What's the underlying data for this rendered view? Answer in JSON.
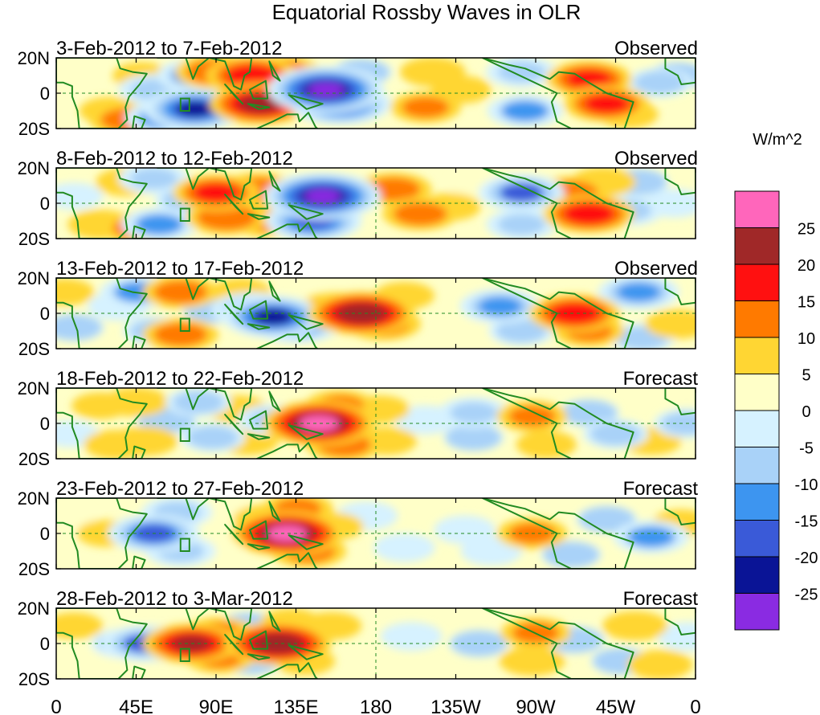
{
  "chart_data": {
    "type": "heatmap",
    "title": "Equatorial Rossby Waves in OLR",
    "units_label": "W/m^2",
    "x_ticks": [
      "0",
      "45E",
      "90E",
      "135E",
      "180",
      "135W",
      "90W",
      "45W",
      "0"
    ],
    "x_tick_lons": [
      0,
      45,
      90,
      135,
      180,
      225,
      270,
      315,
      360
    ],
    "y_ticks": [
      "20N",
      "0",
      "20S"
    ],
    "y_tick_lats": [
      20,
      0,
      -20
    ],
    "lon_range": [
      0,
      360
    ],
    "lat_range": [
      -20,
      20
    ],
    "colorbar": {
      "levels": [
        "25",
        "20",
        "15",
        "10",
        "5",
        "0",
        "-5",
        "-10",
        "-15",
        "-20",
        "-25"
      ],
      "colors": [
        "#ff66bb",
        "#a02828",
        "#ff1010",
        "#ff7a00",
        "#ffd633",
        "#ffffc8",
        "#d6f2ff",
        "#a9d2f8",
        "#3d95f0",
        "#3a5ad8",
        "#0a1496",
        "#8a2be2"
      ]
    },
    "land_color": "#228b22",
    "panels": [
      {
        "date_range": "3-Feb-2012 to 7-Feb-2012",
        "status": "Observed",
        "anomalies": [
          {
            "lon": 6,
            "lat": 14,
            "val": 3
          },
          {
            "lon": 30,
            "lat": -10,
            "val": 6
          },
          {
            "lon": 40,
            "lat": -15,
            "val": 12
          },
          {
            "lon": 48,
            "lat": 10,
            "val": 5
          },
          {
            "lon": 55,
            "lat": 2,
            "val": -10
          },
          {
            "lon": 60,
            "lat": -14,
            "val": -12
          },
          {
            "lon": 78,
            "lat": -9,
            "val": -22
          },
          {
            "lon": 78,
            "lat": 10,
            "val": -12
          },
          {
            "lon": 90,
            "lat": 12,
            "val": 14
          },
          {
            "lon": 92,
            "lat": -6,
            "val": 12
          },
          {
            "lon": 110,
            "lat": 10,
            "val": 18
          },
          {
            "lon": 115,
            "lat": -6,
            "val": 22
          },
          {
            "lon": 128,
            "lat": 12,
            "val": 12
          },
          {
            "lon": 138,
            "lat": 0,
            "val": -12
          },
          {
            "lon": 152,
            "lat": 2,
            "val": -28
          },
          {
            "lon": 160,
            "lat": -6,
            "val": -22
          },
          {
            "lon": 172,
            "lat": 12,
            "val": -6
          },
          {
            "lon": 208,
            "lat": -8,
            "val": 10
          },
          {
            "lon": 212,
            "lat": 12,
            "val": 8
          },
          {
            "lon": 228,
            "lat": 2,
            "val": 6
          },
          {
            "lon": 262,
            "lat": 12,
            "val": -10
          },
          {
            "lon": 264,
            "lat": -10,
            "val": -12
          },
          {
            "lon": 278,
            "lat": 8,
            "val": 4
          },
          {
            "lon": 300,
            "lat": 8,
            "val": 16
          },
          {
            "lon": 310,
            "lat": -6,
            "val": 16
          },
          {
            "lon": 322,
            "lat": -12,
            "val": 6
          },
          {
            "lon": 340,
            "lat": 6,
            "val": -8
          },
          {
            "lon": 350,
            "lat": 10,
            "val": -6
          }
        ]
      },
      {
        "date_range": "8-Feb-2012 to 12-Feb-2012",
        "status": "Observed",
        "anomalies": [
          {
            "lon": 10,
            "lat": 4,
            "val": -5
          },
          {
            "lon": 25,
            "lat": -12,
            "val": 8
          },
          {
            "lon": 40,
            "lat": 12,
            "val": 7
          },
          {
            "lon": 45,
            "lat": -14,
            "val": 10
          },
          {
            "lon": 55,
            "lat": 14,
            "val": -10
          },
          {
            "lon": 58,
            "lat": -12,
            "val": -12
          },
          {
            "lon": 74,
            "lat": 2,
            "val": -8
          },
          {
            "lon": 90,
            "lat": 6,
            "val": 16
          },
          {
            "lon": 96,
            "lat": -8,
            "val": 14
          },
          {
            "lon": 114,
            "lat": 8,
            "val": 12
          },
          {
            "lon": 118,
            "lat": -10,
            "val": 10
          },
          {
            "lon": 150,
            "lat": 4,
            "val": -28
          },
          {
            "lon": 145,
            "lat": -10,
            "val": -20
          },
          {
            "lon": 190,
            "lat": 8,
            "val": 12
          },
          {
            "lon": 205,
            "lat": -6,
            "val": 12
          },
          {
            "lon": 222,
            "lat": -2,
            "val": 6
          },
          {
            "lon": 238,
            "lat": 10,
            "val": 4
          },
          {
            "lon": 262,
            "lat": 6,
            "val": -16
          },
          {
            "lon": 262,
            "lat": -12,
            "val": -10
          },
          {
            "lon": 290,
            "lat": 6,
            "val": 12
          },
          {
            "lon": 300,
            "lat": -6,
            "val": 18
          },
          {
            "lon": 308,
            "lat": 12,
            "val": 8
          },
          {
            "lon": 322,
            "lat": -4,
            "val": -10
          },
          {
            "lon": 328,
            "lat": 12,
            "val": -6
          },
          {
            "lon": 348,
            "lat": 0,
            "val": -4
          }
        ]
      },
      {
        "date_range": "13-Feb-2012 to 17-Feb-2012",
        "status": "Observed",
        "anomalies": [
          {
            "lon": 5,
            "lat": 12,
            "val": 5
          },
          {
            "lon": 10,
            "lat": -8,
            "val": -6
          },
          {
            "lon": 35,
            "lat": 4,
            "val": -4
          },
          {
            "lon": 46,
            "lat": 12,
            "val": -12
          },
          {
            "lon": 56,
            "lat": -10,
            "val": -8
          },
          {
            "lon": 70,
            "lat": 12,
            "val": 12
          },
          {
            "lon": 70,
            "lat": -12,
            "val": 12
          },
          {
            "lon": 88,
            "lat": 2,
            "val": -6
          },
          {
            "lon": 104,
            "lat": 12,
            "val": 6
          },
          {
            "lon": 110,
            "lat": 2,
            "val": -14
          },
          {
            "lon": 122,
            "lat": -2,
            "val": -22
          },
          {
            "lon": 135,
            "lat": -6,
            "val": -18
          },
          {
            "lon": 158,
            "lat": 2,
            "val": 14
          },
          {
            "lon": 172,
            "lat": 0,
            "val": 24
          },
          {
            "lon": 184,
            "lat": -6,
            "val": 12
          },
          {
            "lon": 196,
            "lat": 10,
            "val": 6
          },
          {
            "lon": 232,
            "lat": -12,
            "val": 4
          },
          {
            "lon": 250,
            "lat": 4,
            "val": -14
          },
          {
            "lon": 262,
            "lat": -10,
            "val": -8
          },
          {
            "lon": 292,
            "lat": 0,
            "val": 18
          },
          {
            "lon": 300,
            "lat": -10,
            "val": 10
          },
          {
            "lon": 328,
            "lat": 12,
            "val": -14
          },
          {
            "lon": 330,
            "lat": -14,
            "val": -8
          },
          {
            "lon": 350,
            "lat": -6,
            "val": 8
          }
        ]
      },
      {
        "date_range": "18-Feb-2012 to 22-Feb-2012",
        "status": "Forecast",
        "anomalies": [
          {
            "lon": 8,
            "lat": -6,
            "val": -5
          },
          {
            "lon": 25,
            "lat": 10,
            "val": 5
          },
          {
            "lon": 34,
            "lat": -12,
            "val": 8
          },
          {
            "lon": 45,
            "lat": 12,
            "val": 8
          },
          {
            "lon": 50,
            "lat": -10,
            "val": 8
          },
          {
            "lon": 62,
            "lat": 2,
            "val": -6
          },
          {
            "lon": 80,
            "lat": 12,
            "val": -8
          },
          {
            "lon": 88,
            "lat": -8,
            "val": -8
          },
          {
            "lon": 102,
            "lat": 8,
            "val": 6
          },
          {
            "lon": 108,
            "lat": -10,
            "val": 6
          },
          {
            "lon": 122,
            "lat": 2,
            "val": -10
          },
          {
            "lon": 148,
            "lat": 0,
            "val": 26
          },
          {
            "lon": 160,
            "lat": 10,
            "val": 10
          },
          {
            "lon": 162,
            "lat": -12,
            "val": 12
          },
          {
            "lon": 182,
            "lat": 8,
            "val": 6
          },
          {
            "lon": 186,
            "lat": -10,
            "val": 6
          },
          {
            "lon": 208,
            "lat": 2,
            "val": -4
          },
          {
            "lon": 235,
            "lat": 6,
            "val": -10
          },
          {
            "lon": 235,
            "lat": -8,
            "val": -6
          },
          {
            "lon": 268,
            "lat": 4,
            "val": 10
          },
          {
            "lon": 276,
            "lat": -12,
            "val": 6
          },
          {
            "lon": 300,
            "lat": 6,
            "val": -6
          },
          {
            "lon": 315,
            "lat": -6,
            "val": -8
          },
          {
            "lon": 335,
            "lat": -10,
            "val": 6
          },
          {
            "lon": 355,
            "lat": 0,
            "val": -8
          }
        ]
      },
      {
        "date_range": "23-Feb-2012 to 27-Feb-2012",
        "status": "Forecast",
        "anomalies": [
          {
            "lon": 5,
            "lat": 8,
            "val": 4
          },
          {
            "lon": 28,
            "lat": 0,
            "val": 5
          },
          {
            "lon": 55,
            "lat": 0,
            "val": -18
          },
          {
            "lon": 68,
            "lat": 12,
            "val": -10
          },
          {
            "lon": 70,
            "lat": -10,
            "val": -10
          },
          {
            "lon": 88,
            "lat": -8,
            "val": 4
          },
          {
            "lon": 96,
            "lat": 10,
            "val": 4
          },
          {
            "lon": 118,
            "lat": 8,
            "val": 8
          },
          {
            "lon": 130,
            "lat": 0,
            "val": 26
          },
          {
            "lon": 136,
            "lat": 14,
            "val": 10
          },
          {
            "lon": 142,
            "lat": -10,
            "val": 12
          },
          {
            "lon": 156,
            "lat": 4,
            "val": 6
          },
          {
            "lon": 175,
            "lat": 10,
            "val": -4
          },
          {
            "lon": 196,
            "lat": -8,
            "val": -4
          },
          {
            "lon": 230,
            "lat": 2,
            "val": -4
          },
          {
            "lon": 245,
            "lat": -10,
            "val": -4
          },
          {
            "lon": 268,
            "lat": 0,
            "val": 10
          },
          {
            "lon": 290,
            "lat": -12,
            "val": -6
          },
          {
            "lon": 310,
            "lat": 8,
            "val": -6
          },
          {
            "lon": 335,
            "lat": -2,
            "val": -12
          },
          {
            "lon": 352,
            "lat": 6,
            "val": 5
          }
        ]
      },
      {
        "date_range": "28-Feb-2012 to 3-Mar-2012",
        "status": "Forecast",
        "anomalies": [
          {
            "lon": 10,
            "lat": 10,
            "val": 5
          },
          {
            "lon": 20,
            "lat": -8,
            "val": 4
          },
          {
            "lon": 38,
            "lat": 0,
            "val": -8
          },
          {
            "lon": 50,
            "lat": 0,
            "val": -16
          },
          {
            "lon": 62,
            "lat": 0,
            "val": -14
          },
          {
            "lon": 76,
            "lat": 0,
            "val": 20
          },
          {
            "lon": 92,
            "lat": 6,
            "val": 10
          },
          {
            "lon": 92,
            "lat": -8,
            "val": 10
          },
          {
            "lon": 108,
            "lat": 10,
            "val": -6
          },
          {
            "lon": 110,
            "lat": -10,
            "val": -6
          },
          {
            "lon": 125,
            "lat": 0,
            "val": 24
          },
          {
            "lon": 132,
            "lat": 12,
            "val": 6
          },
          {
            "lon": 140,
            "lat": -10,
            "val": 6
          },
          {
            "lon": 155,
            "lat": 10,
            "val": 6
          },
          {
            "lon": 200,
            "lat": 4,
            "val": -4
          },
          {
            "lon": 238,
            "lat": 0,
            "val": -6
          },
          {
            "lon": 270,
            "lat": 6,
            "val": 10
          },
          {
            "lon": 268,
            "lat": -10,
            "val": 8
          },
          {
            "lon": 292,
            "lat": 2,
            "val": -6
          },
          {
            "lon": 318,
            "lat": -10,
            "val": -6
          },
          {
            "lon": 326,
            "lat": 10,
            "val": 8
          },
          {
            "lon": 340,
            "lat": -12,
            "val": 8
          },
          {
            "lon": 356,
            "lat": 4,
            "val": -4
          }
        ]
      }
    ]
  }
}
